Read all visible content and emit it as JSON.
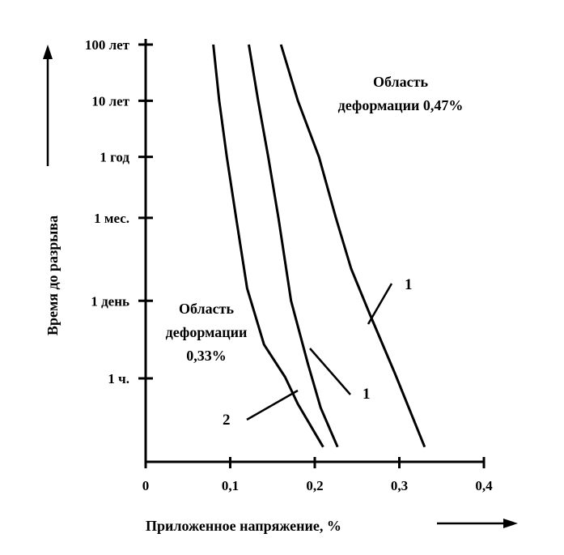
{
  "chart_data": {
    "type": "line",
    "title": "",
    "xlabel": "Приложенное напряжение, %",
    "ylabel": "Время до разрыва",
    "x_ticks": [
      0,
      0.1,
      0.2,
      0.3,
      0.4
    ],
    "x_tick_labels": [
      "0",
      "0,1",
      "0,2",
      "0,3",
      "0,4"
    ],
    "xlim": [
      0,
      0.4
    ],
    "y_scale": "log",
    "y_ticks": [
      "100 лет",
      "10 лет",
      "1 год",
      "1 мес.",
      "1 день",
      "1 ч."
    ],
    "y_tick_hours": [
      876000,
      87600,
      8760,
      720,
      24,
      1
    ],
    "ylim_hours": [
      0.05,
      876000
    ],
    "grid": false,
    "series": [
      {
        "name": "1",
        "label_text": "1",
        "points": [
          [
            0.16,
            876000
          ],
          [
            0.18,
            87600
          ],
          [
            0.205,
            8760
          ],
          [
            0.225,
            720
          ],
          [
            0.243,
            90
          ],
          [
            0.265,
            14
          ],
          [
            0.295,
            1.2
          ],
          [
            0.33,
            0.06
          ]
        ]
      },
      {
        "name": "1",
        "label_text": "1",
        "points": [
          [
            0.122,
            876000
          ],
          [
            0.133,
            87600
          ],
          [
            0.145,
            8760
          ],
          [
            0.157,
            720
          ],
          [
            0.172,
            24
          ],
          [
            0.192,
            1.8
          ],
          [
            0.207,
            0.3
          ],
          [
            0.227,
            0.06
          ]
        ]
      },
      {
        "name": "2",
        "label_text": "2",
        "points": [
          [
            0.08,
            876000
          ],
          [
            0.087,
            87600
          ],
          [
            0.096,
            8760
          ],
          [
            0.107,
            720
          ],
          [
            0.12,
            40
          ],
          [
            0.14,
            4
          ],
          [
            0.165,
            1.05
          ],
          [
            0.18,
            0.35
          ],
          [
            0.21,
            0.06
          ]
        ]
      }
    ],
    "annotations": [
      {
        "text_lines": [
          "Область",
          "деформации 0,47%"
        ]
      },
      {
        "text_lines": [
          "Область",
          "деформации",
          "0,33%"
        ]
      }
    ]
  }
}
